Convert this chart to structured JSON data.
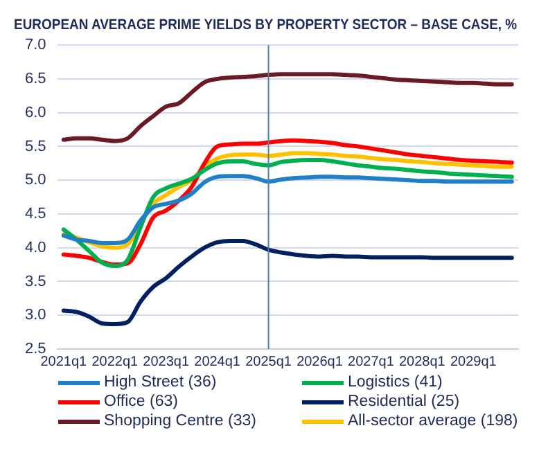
{
  "chart_data": {
    "type": "line",
    "title": "EUROPEAN AVERAGE PRIME YIELDS BY PROPERTY SECTOR – BASE CASE, %",
    "categories": [
      "2021q1",
      null,
      null,
      null,
      "2022q1",
      null,
      null,
      null,
      "2023q1",
      null,
      null,
      null,
      "2024q1",
      null,
      null,
      null,
      "2025q1",
      null,
      null,
      null,
      "2026q1",
      null,
      null,
      null,
      "2027q1",
      null,
      null,
      null,
      "2028q1",
      null,
      null,
      null,
      "2029q1",
      null,
      null,
      null
    ],
    "series": [
      {
        "name": "High Street (36)",
        "color": "#1f7fc9",
        "values": [
          4.18,
          4.12,
          4.1,
          4.07,
          4.07,
          4.12,
          4.4,
          4.6,
          4.65,
          4.7,
          4.8,
          4.97,
          5.05,
          5.06,
          5.06,
          5.03,
          4.98,
          5.01,
          5.03,
          5.04,
          5.05,
          5.05,
          5.04,
          5.04,
          5.03,
          5.02,
          5.01,
          5.0,
          4.99,
          4.99,
          4.98,
          4.98,
          4.98,
          4.98,
          4.98,
          4.98
        ]
      },
      {
        "name": "Logistics (41)",
        "color": "#00b050",
        "values": [
          4.27,
          4.12,
          3.95,
          3.78,
          3.73,
          3.82,
          4.3,
          4.75,
          4.88,
          4.95,
          5.02,
          5.15,
          5.25,
          5.28,
          5.28,
          5.24,
          5.22,
          5.27,
          5.29,
          5.3,
          5.3,
          5.28,
          5.25,
          5.22,
          5.2,
          5.18,
          5.17,
          5.15,
          5.13,
          5.12,
          5.1,
          5.09,
          5.08,
          5.07,
          5.06,
          5.05
        ]
      },
      {
        "name": "Office (63)",
        "color": "#ff0000",
        "values": [
          3.9,
          3.88,
          3.85,
          3.79,
          3.75,
          3.77,
          4.05,
          4.45,
          4.55,
          4.7,
          4.9,
          5.25,
          5.5,
          5.53,
          5.54,
          5.54,
          5.56,
          5.58,
          5.59,
          5.58,
          5.57,
          5.55,
          5.52,
          5.5,
          5.47,
          5.44,
          5.41,
          5.38,
          5.36,
          5.34,
          5.32,
          5.3,
          5.29,
          5.28,
          5.27,
          5.26
        ]
      },
      {
        "name": "Residential (25)",
        "color": "#002060",
        "values": [
          3.07,
          3.05,
          2.98,
          2.88,
          2.87,
          2.9,
          3.2,
          3.42,
          3.55,
          3.72,
          3.87,
          4.0,
          4.08,
          4.1,
          4.1,
          4.05,
          3.97,
          3.93,
          3.9,
          3.88,
          3.87,
          3.88,
          3.87,
          3.87,
          3.86,
          3.86,
          3.86,
          3.86,
          3.86,
          3.85,
          3.85,
          3.85,
          3.85,
          3.85,
          3.85,
          3.85
        ]
      },
      {
        "name": "Shopping Centre (33)",
        "color": "#6b1a25",
        "values": [
          5.6,
          5.62,
          5.62,
          5.6,
          5.58,
          5.62,
          5.8,
          5.95,
          6.09,
          6.14,
          6.3,
          6.45,
          6.5,
          6.52,
          6.53,
          6.54,
          6.56,
          6.57,
          6.57,
          6.57,
          6.57,
          6.57,
          6.56,
          6.55,
          6.53,
          6.51,
          6.49,
          6.48,
          6.47,
          6.46,
          6.45,
          6.44,
          6.44,
          6.43,
          6.42,
          6.42
        ]
      },
      {
        "name": "All-sector average (198)",
        "color": "#ffc000",
        "values": [
          4.2,
          4.15,
          4.08,
          4.02,
          4.0,
          4.05,
          4.35,
          4.65,
          4.78,
          4.9,
          5.0,
          5.2,
          5.32,
          5.37,
          5.38,
          5.38,
          5.36,
          5.38,
          5.4,
          5.4,
          5.39,
          5.38,
          5.36,
          5.35,
          5.33,
          5.31,
          5.3,
          5.28,
          5.27,
          5.25,
          5.24,
          5.23,
          5.22,
          5.21,
          5.2,
          5.2
        ]
      }
    ],
    "ylim": [
      2.5,
      7.0
    ],
    "yticks": [
      {
        "value": 2.5,
        "label": "2.5"
      },
      {
        "value": 3,
        "label": "3.0"
      },
      {
        "value": 3.5,
        "label": "3.5"
      },
      {
        "value": 4,
        "label": "4.0"
      },
      {
        "value": 4.5,
        "label": "4.5"
      },
      {
        "value": 5,
        "label": "5.0"
      },
      {
        "value": 5.5,
        "label": "5.5"
      },
      {
        "value": 6,
        "label": "6.0"
      },
      {
        "value": 6.5,
        "label": "6.5"
      },
      {
        "value": 7,
        "label": "7.0"
      }
    ],
    "grid": "y",
    "legend": "bottom",
    "marker": "none",
    "line_style": "solid",
    "ref_lines": [
      {
        "axis": "x",
        "value": "2025q1",
        "color": "#4a7fa8"
      }
    ]
  }
}
